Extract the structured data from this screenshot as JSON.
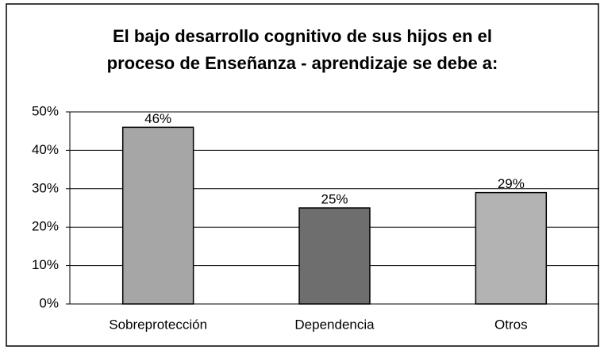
{
  "chart_data": {
    "type": "bar",
    "title": [
      "El bajo  desarrollo cognitivo de sus hijos en el",
      "proceso de Enseñanza - aprendizaje se debe a:"
    ],
    "categories": [
      "Sobreprotección",
      "Dependencia",
      "Otros"
    ],
    "values": [
      46,
      25,
      29
    ],
    "value_labels": [
      "46%",
      "25%",
      "29%"
    ],
    "colors": [
      "#a6a6a6",
      "#6e6e6e",
      "#b3b3b3"
    ],
    "ylim": [
      0,
      50
    ],
    "yticks": [
      {
        "value": 0,
        "label": "0%"
      },
      {
        "value": 10,
        "label": "10%"
      },
      {
        "value": 20,
        "label": "20%"
      },
      {
        "value": 30,
        "label": "30%"
      },
      {
        "value": 40,
        "label": "40%"
      },
      {
        "value": 50,
        "label": "50%"
      }
    ],
    "grid": true
  }
}
